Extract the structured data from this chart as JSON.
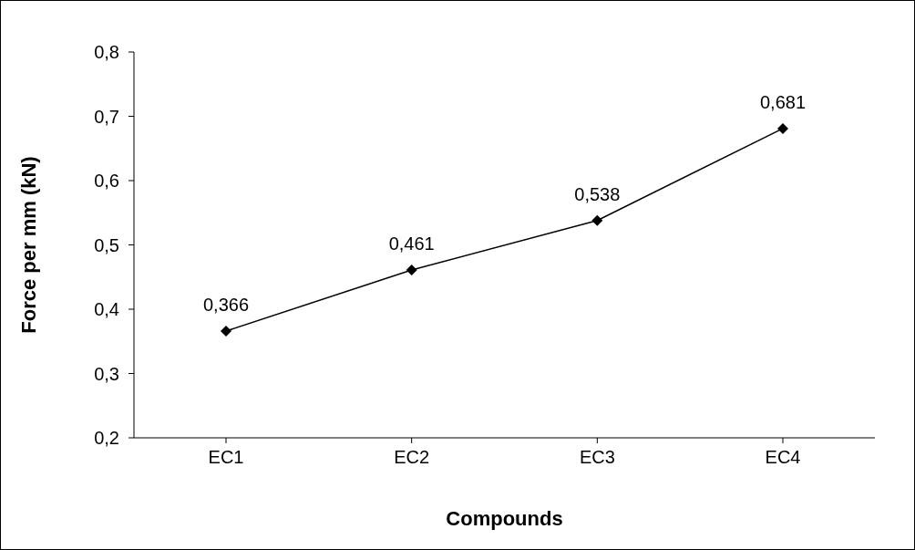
{
  "chart_data": {
    "type": "line",
    "xlabel": "Compounds",
    "ylabel": "Force per mm (kN)",
    "categories": [
      "EC1",
      "EC2",
      "EC3",
      "EC4"
    ],
    "series": [
      {
        "color": "#000000",
        "values": [
          0.366,
          0.461,
          0.538,
          0.681
        ],
        "value_labels": [
          "0,366",
          "0,461",
          "0,538",
          "0,681"
        ]
      }
    ],
    "ylim": [
      0.2,
      0.8
    ],
    "yticks": [
      {
        "value": 0.2,
        "label": "0,2"
      },
      {
        "value": 0.3,
        "label": "0,3"
      },
      {
        "value": 0.4,
        "label": "0,4"
      },
      {
        "value": 0.5,
        "label": "0,5"
      },
      {
        "value": 0.6,
        "label": "0,6"
      },
      {
        "value": 0.7,
        "label": "0,7"
      },
      {
        "value": 0.8,
        "label": "0,8"
      }
    ],
    "grid": false,
    "legend": false,
    "marker": "diamond",
    "line_style": "solid"
  }
}
